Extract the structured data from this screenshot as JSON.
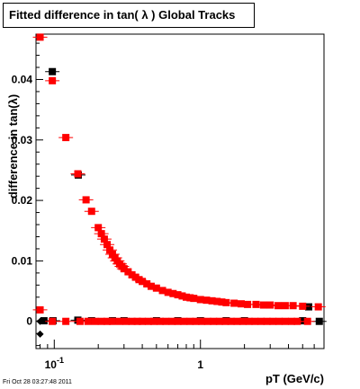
{
  "title": "Fitted difference in tan( λ )  Global Tracks",
  "footer": "Fri Oct 28 03:27:48 2011",
  "chart_data": {
    "type": "scatter",
    "title": "Fitted difference in tan( λ )  Global Tracks",
    "xlabel": "pT (GeV/c)",
    "ylabel": "difference in tan(λ)",
    "xscale": "log",
    "xlim": [
      0.075,
      7.0
    ],
    "ylim": [
      -0.0045,
      0.0475
    ],
    "x_ticks": [
      {
        "value": 0.1,
        "label": "10",
        "sup": "-1"
      },
      {
        "value": 1,
        "label": "1",
        "sup": ""
      }
    ],
    "y_ticks": [
      {
        "value": 0,
        "label": "0"
      },
      {
        "value": 0.01,
        "label": "0.01"
      },
      {
        "value": 0.02,
        "label": "0.02"
      },
      {
        "value": 0.03,
        "label": "0.03"
      },
      {
        "value": 0.04,
        "label": "0.04"
      }
    ],
    "grid": false,
    "series": [
      {
        "color": "#000000",
        "marker": "square",
        "points": [
          [
            0.085,
            0.0001
          ],
          [
            0.097,
            0.0413
          ],
          [
            0.098,
            0.0001
          ],
          [
            0.145,
            0.0002
          ],
          [
            0.146,
            0.0242
          ],
          [
            0.18,
            0.0001
          ],
          [
            0.25,
            0.0001
          ],
          [
            0.3,
            0.0001
          ],
          [
            0.5,
            0.0001
          ],
          [
            0.7,
            0.0001
          ],
          [
            1.0,
            0.0001
          ],
          [
            1.5,
            0.0001
          ],
          [
            2.0,
            0.0001
          ],
          [
            5.0,
            0.0001
          ],
          [
            5.5,
            0.0024
          ],
          [
            6.5,
            0.0
          ]
        ]
      },
      {
        "color": "#000000",
        "marker": "diamond",
        "points": [
          [
            0.08,
            -0.0021
          ],
          [
            0.08,
            0.0
          ]
        ]
      },
      {
        "color": "#ff0000",
        "marker": "square",
        "points": [
          [
            0.08,
            0.047
          ],
          [
            0.08,
            0.0019
          ],
          [
            0.097,
            0.0398
          ],
          [
            0.097,
            0.0
          ],
          [
            0.12,
            0.0304
          ],
          [
            0.145,
            0.0244
          ],
          [
            0.165,
            0.0201
          ],
          [
            0.18,
            0.0182
          ],
          [
            0.2,
            0.0155
          ],
          [
            0.21,
            0.0145
          ],
          [
            0.22,
            0.0136
          ],
          [
            0.23,
            0.0127
          ],
          [
            0.24,
            0.0118
          ],
          [
            0.25,
            0.0111
          ],
          [
            0.26,
            0.0105
          ],
          [
            0.27,
            0.01
          ],
          [
            0.28,
            0.0095
          ],
          [
            0.29,
            0.0091
          ],
          [
            0.3,
            0.0087
          ],
          [
            0.32,
            0.0082
          ],
          [
            0.34,
            0.0077
          ],
          [
            0.36,
            0.0073
          ],
          [
            0.38,
            0.0069
          ],
          [
            0.4,
            0.0066
          ],
          [
            0.43,
            0.0062
          ],
          [
            0.46,
            0.0058
          ],
          [
            0.5,
            0.0055
          ],
          [
            0.55,
            0.0051
          ],
          [
            0.6,
            0.0048
          ],
          [
            0.65,
            0.0046
          ],
          [
            0.7,
            0.0044
          ],
          [
            0.75,
            0.0042
          ],
          [
            0.8,
            0.004
          ],
          [
            0.85,
            0.0039
          ],
          [
            0.9,
            0.0038
          ],
          [
            1.0,
            0.0036
          ],
          [
            1.1,
            0.0035
          ],
          [
            1.2,
            0.0034
          ],
          [
            1.3,
            0.0033
          ],
          [
            1.4,
            0.0032
          ],
          [
            1.5,
            0.0031
          ],
          [
            1.7,
            0.003
          ],
          [
            1.9,
            0.0029
          ],
          [
            2.1,
            0.0028
          ],
          [
            2.4,
            0.0028
          ],
          [
            2.7,
            0.0027
          ],
          [
            3.0,
            0.0027
          ],
          [
            3.4,
            0.0026
          ],
          [
            3.8,
            0.0026
          ],
          [
            4.3,
            0.0026
          ],
          [
            5.0,
            0.0025
          ],
          [
            6.4,
            0.0024
          ],
          [
            0.12,
            0.0
          ],
          [
            0.15,
            0.0
          ],
          [
            0.17,
            0.0
          ],
          [
            0.19,
            0.0
          ],
          [
            0.21,
            0.0
          ],
          [
            0.23,
            0.0
          ],
          [
            0.25,
            0.0
          ],
          [
            0.28,
            0.0
          ],
          [
            0.31,
            0.0
          ],
          [
            0.34,
            0.0
          ],
          [
            0.37,
            0.0
          ],
          [
            0.4,
            0.0
          ],
          [
            0.44,
            0.0
          ],
          [
            0.48,
            0.0
          ],
          [
            0.53,
            0.0
          ],
          [
            0.58,
            0.0
          ],
          [
            0.64,
            0.0
          ],
          [
            0.7,
            0.0
          ],
          [
            0.77,
            0.0
          ],
          [
            0.85,
            0.0
          ],
          [
            0.93,
            0.0
          ],
          [
            1.02,
            0.0
          ],
          [
            1.12,
            0.0
          ],
          [
            1.23,
            0.0
          ],
          [
            1.35,
            0.0
          ],
          [
            1.48,
            0.0
          ],
          [
            1.62,
            0.0
          ],
          [
            1.78,
            0.0
          ],
          [
            1.95,
            0.0
          ],
          [
            2.15,
            0.0
          ],
          [
            2.36,
            0.0
          ],
          [
            2.6,
            0.0
          ],
          [
            2.85,
            0.0
          ],
          [
            3.13,
            0.0
          ],
          [
            3.45,
            0.0
          ],
          [
            3.8,
            0.0
          ],
          [
            4.2,
            0.0
          ],
          [
            4.6,
            0.0
          ],
          [
            5.4,
            0.0
          ]
        ]
      }
    ]
  }
}
